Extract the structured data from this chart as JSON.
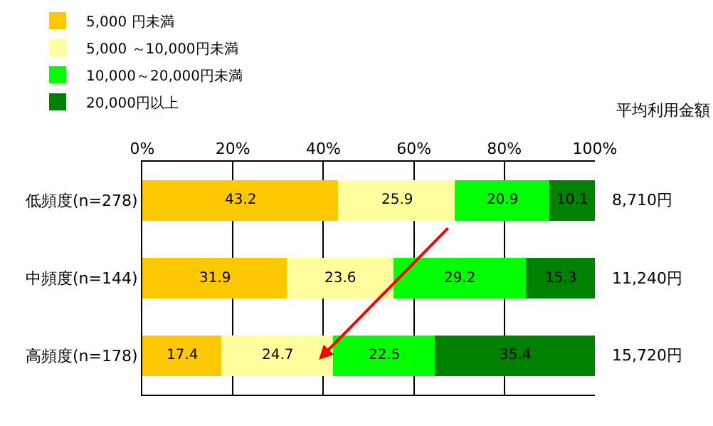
{
  "chart_data": {
    "type": "bar",
    "orientation": "horizontal",
    "stacked": true,
    "data_labels": true,
    "grid": "x",
    "legend": "top",
    "categories": [
      "低頻度(n=278)",
      "中頻度(n=144)",
      "高頻度(n=178)"
    ],
    "series": [
      {
        "name": "5,000 円未満",
        "color": "#ffc800",
        "values": [
          43.2,
          31.9,
          17.4
        ]
      },
      {
        "name": "5,000 ～10,000円未満",
        "color": "#ffff9e",
        "values": [
          25.9,
          23.6,
          24.7
        ]
      },
      {
        "name": "10,000～20,000円未満",
        "color": "#00ff00",
        "values": [
          20.9,
          29.2,
          22.5
        ]
      },
      {
        "name": "20,000円以上",
        "color": "#008000",
        "values": [
          10.1,
          15.3,
          35.4
        ]
      }
    ],
    "xlim": [
      0,
      100
    ],
    "xticks": [
      {
        "value": 0,
        "label": "0%"
      },
      {
        "value": 20,
        "label": "20%"
      },
      {
        "value": 40,
        "label": "40%"
      },
      {
        "value": 60,
        "label": "60%"
      },
      {
        "value": 80,
        "label": "80%"
      },
      {
        "value": 100,
        "label": "100%"
      }
    ],
    "annotations": [
      "平均利用金額",
      "8,710円",
      "11,240円",
      "15,720円"
    ]
  }
}
